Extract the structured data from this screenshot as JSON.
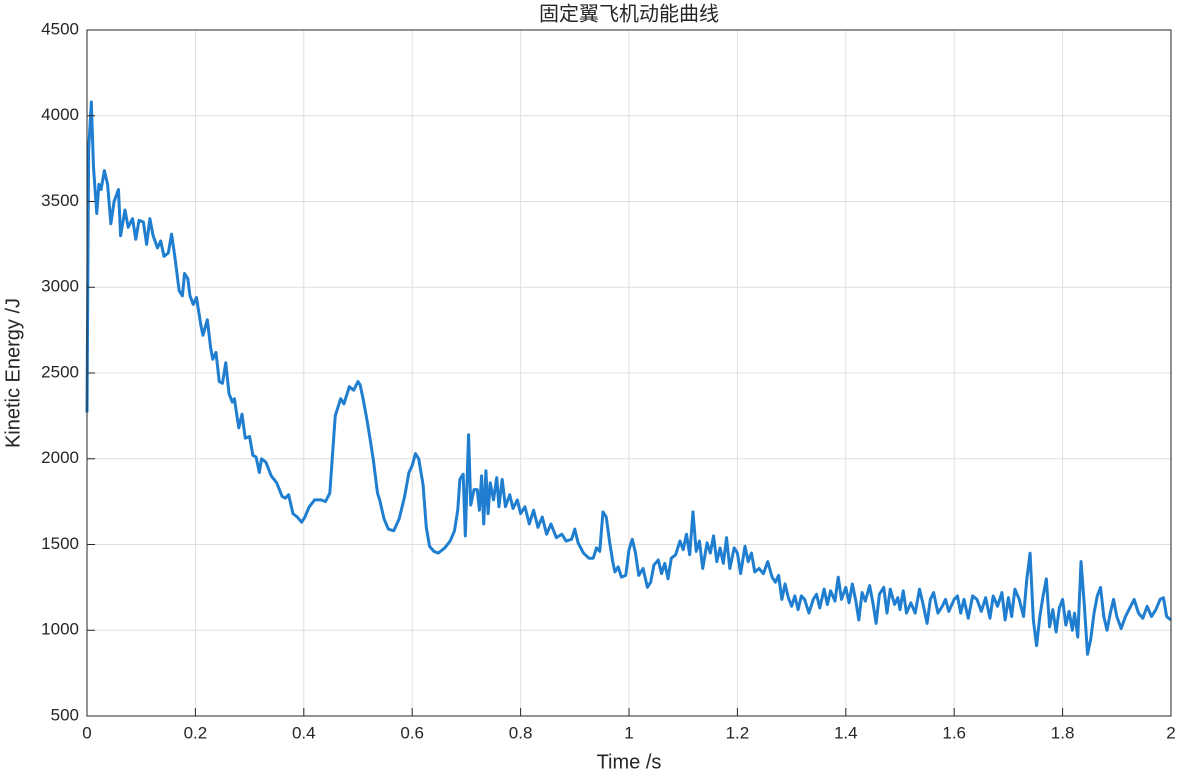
{
  "chart_data": {
    "type": "line",
    "title": "固定翼飞机动能曲线",
    "xlabel": "Time /s",
    "ylabel": "Kinetic Energy /J",
    "xlim": [
      0,
      2
    ],
    "ylim": [
      500,
      4500
    ],
    "xticks": [
      0,
      0.2,
      0.4,
      0.6,
      0.8,
      1,
      1.2,
      1.4,
      1.6,
      1.8,
      2
    ],
    "yticks": [
      500,
      1000,
      1500,
      2000,
      2500,
      3000,
      3500,
      4000,
      4500
    ],
    "grid": true,
    "series": [
      {
        "color": "#1f7ecf",
        "x": [
          0,
          0.003,
          0.008,
          0.012,
          0.018,
          0.022,
          0.026,
          0.032,
          0.038,
          0.044,
          0.05,
          0.058,
          0.062,
          0.07,
          0.076,
          0.084,
          0.09,
          0.096,
          0.104,
          0.11,
          0.116,
          0.122,
          0.13,
          0.136,
          0.142,
          0.15,
          0.156,
          0.162,
          0.17,
          0.176,
          0.18,
          0.186,
          0.19,
          0.196,
          0.202,
          0.21,
          0.214,
          0.222,
          0.228,
          0.232,
          0.238,
          0.244,
          0.25,
          0.256,
          0.262,
          0.268,
          0.272,
          0.28,
          0.286,
          0.292,
          0.3,
          0.306,
          0.312,
          0.318,
          0.322,
          0.33,
          0.34,
          0.35,
          0.36,
          0.366,
          0.372,
          0.38,
          0.388,
          0.396,
          0.402,
          0.41,
          0.42,
          0.432,
          0.44,
          0.448,
          0.458,
          0.468,
          0.474,
          0.484,
          0.492,
          0.5,
          0.504,
          0.51,
          0.518,
          0.528,
          0.536,
          0.54,
          0.548,
          0.556,
          0.566,
          0.576,
          0.586,
          0.594,
          0.6,
          0.606,
          0.612,
          0.62,
          0.626,
          0.632,
          0.64,
          0.648,
          0.66,
          0.67,
          0.678,
          0.684,
          0.688,
          0.694,
          0.698,
          0.704,
          0.708,
          0.714,
          0.72,
          0.724,
          0.728,
          0.732,
          0.736,
          0.74,
          0.744,
          0.75,
          0.756,
          0.76,
          0.766,
          0.772,
          0.78,
          0.786,
          0.794,
          0.8,
          0.808,
          0.816,
          0.824,
          0.832,
          0.84,
          0.848,
          0.856,
          0.866,
          0.876,
          0.884,
          0.894,
          0.9,
          0.906,
          0.916,
          0.926,
          0.934,
          0.94,
          0.946,
          0.952,
          0.958,
          0.964,
          0.97,
          0.974,
          0.98,
          0.986,
          0.994,
          1.0,
          1.006,
          1.012,
          1.018,
          1.026,
          1.034,
          1.04,
          1.046,
          1.054,
          1.06,
          1.066,
          1.072,
          1.078,
          1.086,
          1.094,
          1.1,
          1.106,
          1.112,
          1.118,
          1.124,
          1.13,
          1.136,
          1.144,
          1.15,
          1.156,
          1.162,
          1.168,
          1.174,
          1.18,
          1.186,
          1.194,
          1.2,
          1.206,
          1.214,
          1.22,
          1.226,
          1.232,
          1.24,
          1.248,
          1.256,
          1.264,
          1.27,
          1.276,
          1.282,
          1.288,
          1.294,
          1.3,
          1.306,
          1.312,
          1.318,
          1.324,
          1.332,
          1.34,
          1.346,
          1.352,
          1.36,
          1.366,
          1.372,
          1.38,
          1.386,
          1.392,
          1.4,
          1.406,
          1.412,
          1.418,
          1.424,
          1.43,
          1.436,
          1.444,
          1.45,
          1.456,
          1.462,
          1.47,
          1.476,
          1.482,
          1.49,
          1.496,
          1.5,
          1.506,
          1.512,
          1.52,
          1.528,
          1.536,
          1.542,
          1.55,
          1.556,
          1.562,
          1.57,
          1.578,
          1.584,
          1.59,
          1.6,
          1.606,
          1.612,
          1.618,
          1.626,
          1.634,
          1.642,
          1.65,
          1.658,
          1.666,
          1.672,
          1.68,
          1.688,
          1.694,
          1.7,
          1.706,
          1.712,
          1.72,
          1.728,
          1.734,
          1.74,
          1.746,
          1.752,
          1.758,
          1.764,
          1.77,
          1.776,
          1.782,
          1.788,
          1.794,
          1.8,
          1.806,
          1.812,
          1.818,
          1.822,
          1.828,
          1.834,
          1.84,
          1.846,
          1.852,
          1.858,
          1.864,
          1.87,
          1.876,
          1.882,
          1.888,
          1.894,
          1.9,
          1.908,
          1.916,
          1.924,
          1.932,
          1.94,
          1.948,
          1.956,
          1.964,
          1.972,
          1.98,
          1.986,
          1.992,
          2.0
        ],
        "values": [
          2270,
          3800,
          4080,
          3700,
          3430,
          3600,
          3570,
          3680,
          3600,
          3370,
          3500,
          3570,
          3300,
          3450,
          3350,
          3400,
          3280,
          3390,
          3380,
          3250,
          3400,
          3300,
          3230,
          3270,
          3180,
          3200,
          3310,
          3180,
          2980,
          2950,
          3080,
          3050,
          2950,
          2900,
          2940,
          2780,
          2720,
          2810,
          2650,
          2580,
          2620,
          2450,
          2440,
          2560,
          2380,
          2330,
          2350,
          2180,
          2260,
          2120,
          2130,
          2020,
          2010,
          1920,
          2000,
          1980,
          1900,
          1860,
          1780,
          1770,
          1790,
          1680,
          1660,
          1630,
          1660,
          1720,
          1760,
          1760,
          1750,
          1800,
          2250,
          2350,
          2320,
          2420,
          2400,
          2450,
          2430,
          2340,
          2200,
          2000,
          1800,
          1760,
          1650,
          1590,
          1580,
          1650,
          1780,
          1920,
          1960,
          2030,
          2000,
          1850,
          1600,
          1490,
          1460,
          1450,
          1480,
          1520,
          1580,
          1700,
          1880,
          1910,
          1550,
          2140,
          1730,
          1820,
          1820,
          1700,
          1900,
          1620,
          1930,
          1680,
          1860,
          1760,
          1890,
          1720,
          1880,
          1720,
          1790,
          1710,
          1760,
          1680,
          1720,
          1620,
          1700,
          1600,
          1660,
          1560,
          1620,
          1540,
          1560,
          1520,
          1530,
          1590,
          1510,
          1450,
          1420,
          1420,
          1480,
          1460,
          1690,
          1660,
          1520,
          1400,
          1340,
          1370,
          1310,
          1320,
          1470,
          1530,
          1450,
          1320,
          1360,
          1250,
          1280,
          1380,
          1410,
          1330,
          1390,
          1300,
          1420,
          1440,
          1520,
          1470,
          1560,
          1440,
          1690,
          1460,
          1520,
          1360,
          1510,
          1450,
          1550,
          1400,
          1480,
          1390,
          1540,
          1360,
          1480,
          1450,
          1330,
          1490,
          1400,
          1450,
          1340,
          1360,
          1330,
          1400,
          1310,
          1280,
          1320,
          1180,
          1270,
          1190,
          1140,
          1200,
          1120,
          1200,
          1180,
          1100,
          1180,
          1210,
          1130,
          1240,
          1150,
          1230,
          1170,
          1310,
          1180,
          1250,
          1160,
          1270,
          1180,
          1060,
          1220,
          1170,
          1260,
          1160,
          1040,
          1210,
          1250,
          1100,
          1240,
          1150,
          1190,
          1120,
          1230,
          1100,
          1160,
          1100,
          1240,
          1160,
          1040,
          1180,
          1220,
          1100,
          1140,
          1180,
          1110,
          1180,
          1200,
          1100,
          1180,
          1070,
          1200,
          1180,
          1110,
          1190,
          1070,
          1200,
          1140,
          1220,
          1060,
          1190,
          1080,
          1240,
          1180,
          1080,
          1300,
          1450,
          1060,
          910,
          1080,
          1200,
          1300,
          1020,
          1120,
          990,
          1130,
          1180,
          1030,
          1110,
          1000,
          1100,
          960,
          1400,
          1150,
          860,
          950,
          1100,
          1200,
          1250,
          1080,
          1000,
          1100,
          1180,
          1080,
          1010,
          1080,
          1130,
          1180,
          1100,
          1070,
          1140,
          1080,
          1120,
          1180,
          1190,
          1080,
          1060
        ]
      }
    ]
  }
}
